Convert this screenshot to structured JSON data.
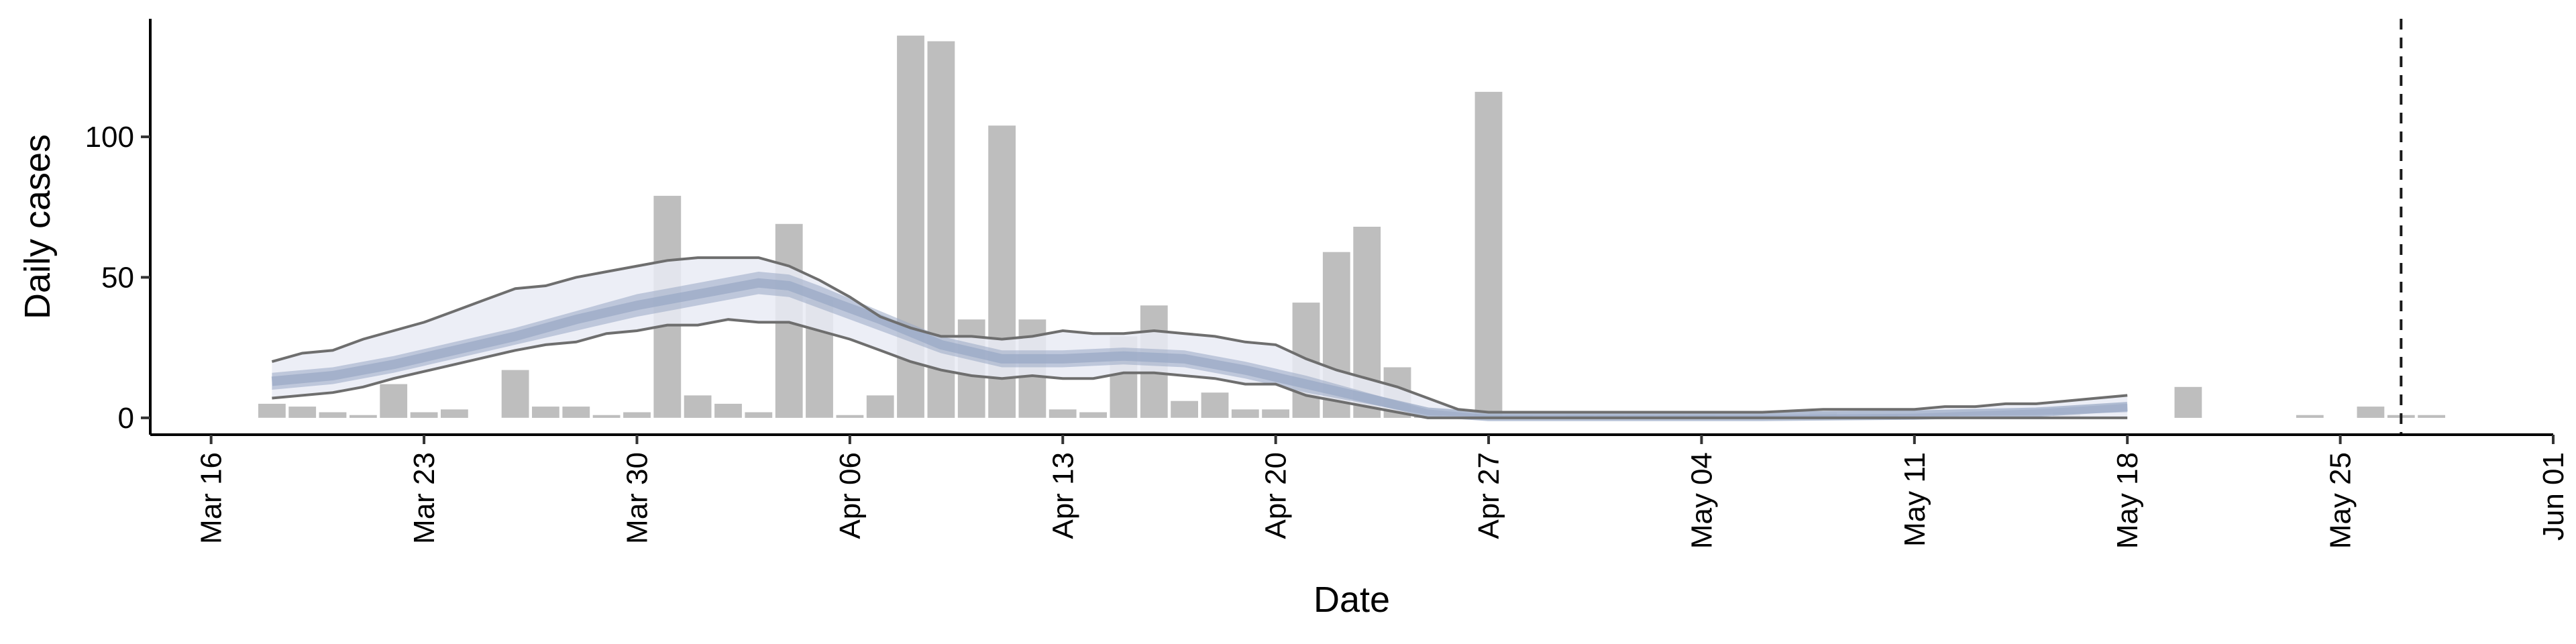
{
  "chart_data": {
    "type": "bar",
    "title": "",
    "xlabel": "Date",
    "ylabel": "Daily cases",
    "x_ticks": [
      "Mar 16",
      "Mar 23",
      "Mar 30",
      "Apr 06",
      "Apr 13",
      "Apr 20",
      "Apr 27",
      "May 04",
      "May 11",
      "May 18",
      "May 25",
      "Jun 01"
    ],
    "y_ticks": [
      0,
      50,
      100
    ],
    "xlim": [
      "2020-03-14",
      "2020-06-01"
    ],
    "ylim": [
      -6,
      142
    ],
    "grid": false,
    "legend": "none",
    "cutoff_date": "2020-05-27",
    "bars": {
      "name": "Daily cases",
      "color": "#bebebe",
      "data": [
        [
          "2020-03-18",
          5
        ],
        [
          "2020-03-19",
          4
        ],
        [
          "2020-03-20",
          2
        ],
        [
          "2020-03-21",
          1
        ],
        [
          "2020-03-22",
          12
        ],
        [
          "2020-03-23",
          2
        ],
        [
          "2020-03-24",
          3
        ],
        [
          "2020-03-26",
          17
        ],
        [
          "2020-03-27",
          4
        ],
        [
          "2020-03-28",
          4
        ],
        [
          "2020-03-29",
          1
        ],
        [
          "2020-03-30",
          2
        ],
        [
          "2020-03-31",
          79
        ],
        [
          "2020-04-01",
          8
        ],
        [
          "2020-04-02",
          5
        ],
        [
          "2020-04-03",
          2
        ],
        [
          "2020-04-04",
          69
        ],
        [
          "2020-04-05",
          42
        ],
        [
          "2020-04-06",
          1
        ],
        [
          "2020-04-07",
          8
        ],
        [
          "2020-04-08",
          136
        ],
        [
          "2020-04-09",
          134
        ],
        [
          "2020-04-10",
          35
        ],
        [
          "2020-04-11",
          104
        ],
        [
          "2020-04-12",
          35
        ],
        [
          "2020-04-13",
          3
        ],
        [
          "2020-04-14",
          2
        ],
        [
          "2020-04-15",
          29
        ],
        [
          "2020-04-16",
          40
        ],
        [
          "2020-04-17",
          6
        ],
        [
          "2020-04-18",
          9
        ],
        [
          "2020-04-19",
          3
        ],
        [
          "2020-04-20",
          3
        ],
        [
          "2020-04-21",
          41
        ],
        [
          "2020-04-22",
          59
        ],
        [
          "2020-04-23",
          68
        ],
        [
          "2020-04-24",
          18
        ],
        [
          "2020-04-25",
          1
        ],
        [
          "2020-04-27",
          116
        ],
        [
          "2020-04-28",
          1
        ],
        [
          "2020-04-30",
          1
        ],
        [
          "2020-05-01",
          1
        ],
        [
          "2020-05-02",
          1
        ],
        [
          "2020-05-03",
          1
        ],
        [
          "2020-05-04",
          1
        ],
        [
          "2020-05-08",
          2
        ],
        [
          "2020-05-10",
          1
        ],
        [
          "2020-05-12",
          1
        ],
        [
          "2020-05-16",
          2
        ],
        [
          "2020-05-20",
          11
        ],
        [
          "2020-05-24",
          1
        ],
        [
          "2020-05-26",
          4
        ],
        [
          "2020-05-27",
          1
        ],
        [
          "2020-05-28",
          1
        ]
      ]
    },
    "median": {
      "color": "#99a8c4",
      "data": [
        [
          "2020-03-18",
          13
        ],
        [
          "2020-03-20",
          15
        ],
        [
          "2020-03-22",
          19
        ],
        [
          "2020-03-24",
          24
        ],
        [
          "2020-03-26",
          29
        ],
        [
          "2020-03-28",
          35
        ],
        [
          "2020-03-30",
          40
        ],
        [
          "2020-04-01",
          44
        ],
        [
          "2020-04-03",
          48
        ],
        [
          "2020-04-04",
          47
        ],
        [
          "2020-04-05",
          43
        ],
        [
          "2020-04-07",
          35
        ],
        [
          "2020-04-09",
          26
        ],
        [
          "2020-04-11",
          21
        ],
        [
          "2020-04-13",
          21
        ],
        [
          "2020-04-15",
          22
        ],
        [
          "2020-04-17",
          21
        ],
        [
          "2020-04-19",
          17
        ],
        [
          "2020-04-21",
          12
        ],
        [
          "2020-04-23",
          7
        ],
        [
          "2020-04-25",
          2
        ],
        [
          "2020-04-27",
          0.5
        ],
        [
          "2020-05-01",
          0.5
        ],
        [
          "2020-05-06",
          0.5
        ],
        [
          "2020-05-11",
          1
        ],
        [
          "2020-05-15",
          2
        ],
        [
          "2020-05-18",
          4
        ]
      ]
    },
    "interval_50": {
      "color": "#99a8c4",
      "lower": [
        [
          "2020-03-18",
          10
        ],
        [
          "2020-03-20",
          12
        ],
        [
          "2020-03-22",
          16
        ],
        [
          "2020-03-24",
          21
        ],
        [
          "2020-03-26",
          26
        ],
        [
          "2020-03-28",
          31
        ],
        [
          "2020-03-30",
          36
        ],
        [
          "2020-04-01",
          40
        ],
        [
          "2020-04-03",
          44
        ],
        [
          "2020-04-04",
          43
        ],
        [
          "2020-04-05",
          39
        ],
        [
          "2020-04-07",
          31
        ],
        [
          "2020-04-09",
          23
        ],
        [
          "2020-04-11",
          18
        ],
        [
          "2020-04-13",
          18
        ],
        [
          "2020-04-15",
          19
        ],
        [
          "2020-04-17",
          18
        ],
        [
          "2020-04-19",
          14
        ],
        [
          "2020-04-21",
          9
        ],
        [
          "2020-04-23",
          5
        ],
        [
          "2020-04-25",
          1
        ],
        [
          "2020-04-27",
          0.2
        ],
        [
          "2020-05-01",
          0.2
        ],
        [
          "2020-05-06",
          0.2
        ],
        [
          "2020-05-11",
          0.5
        ],
        [
          "2020-05-15",
          1
        ],
        [
          "2020-05-18",
          2
        ]
      ],
      "upper": [
        [
          "2020-03-18",
          16
        ],
        [
          "2020-03-20",
          18
        ],
        [
          "2020-03-22",
          22
        ],
        [
          "2020-03-24",
          27
        ],
        [
          "2020-03-26",
          32
        ],
        [
          "2020-03-28",
          38
        ],
        [
          "2020-03-30",
          44
        ],
        [
          "2020-04-01",
          48
        ],
        [
          "2020-04-03",
          52
        ],
        [
          "2020-04-04",
          51
        ],
        [
          "2020-04-05",
          47
        ],
        [
          "2020-04-07",
          38
        ],
        [
          "2020-04-09",
          29
        ],
        [
          "2020-04-11",
          24
        ],
        [
          "2020-04-13",
          24
        ],
        [
          "2020-04-15",
          25
        ],
        [
          "2020-04-17",
          24
        ],
        [
          "2020-04-19",
          20
        ],
        [
          "2020-04-21",
          15
        ],
        [
          "2020-04-23",
          9
        ],
        [
          "2020-04-25",
          3
        ],
        [
          "2020-04-27",
          1
        ],
        [
          "2020-05-01",
          1
        ],
        [
          "2020-05-06",
          1
        ],
        [
          "2020-05-11",
          1.5
        ],
        [
          "2020-05-15",
          3
        ],
        [
          "2020-05-18",
          5
        ]
      ]
    },
    "interval_90": {
      "fill": "#e9ebf4",
      "line": "#6e6e6e",
      "lower": [
        [
          "2020-03-18",
          7
        ],
        [
          "2020-03-20",
          9
        ],
        [
          "2020-03-21",
          11
        ],
        [
          "2020-03-22",
          14
        ],
        [
          "2020-03-24",
          19
        ],
        [
          "2020-03-26",
          24
        ],
        [
          "2020-03-27",
          26
        ],
        [
          "2020-03-28",
          27
        ],
        [
          "2020-03-29",
          30
        ],
        [
          "2020-03-30",
          31
        ],
        [
          "2020-03-31",
          33
        ],
        [
          "2020-04-01",
          33
        ],
        [
          "2020-04-02",
          35
        ],
        [
          "2020-04-03",
          34
        ],
        [
          "2020-04-04",
          34
        ],
        [
          "2020-04-05",
          31
        ],
        [
          "2020-04-06",
          28
        ],
        [
          "2020-04-07",
          24
        ],
        [
          "2020-04-08",
          20
        ],
        [
          "2020-04-09",
          17
        ],
        [
          "2020-04-10",
          15
        ],
        [
          "2020-04-11",
          14
        ],
        [
          "2020-04-12",
          15
        ],
        [
          "2020-04-13",
          14
        ],
        [
          "2020-04-14",
          14
        ],
        [
          "2020-04-15",
          16
        ],
        [
          "2020-04-16",
          16
        ],
        [
          "2020-04-17",
          15
        ],
        [
          "2020-04-18",
          14
        ],
        [
          "2020-04-19",
          12
        ],
        [
          "2020-04-20",
          12
        ],
        [
          "2020-04-21",
          8
        ],
        [
          "2020-04-22",
          6
        ],
        [
          "2020-04-23",
          4
        ],
        [
          "2020-04-24",
          2
        ],
        [
          "2020-04-25",
          0
        ],
        [
          "2020-05-18",
          0
        ]
      ],
      "upper": [
        [
          "2020-03-18",
          20
        ],
        [
          "2020-03-19",
          23
        ],
        [
          "2020-03-20",
          24
        ],
        [
          "2020-03-21",
          28
        ],
        [
          "2020-03-22",
          31
        ],
        [
          "2020-03-23",
          34
        ],
        [
          "2020-03-24",
          38
        ],
        [
          "2020-03-25",
          42
        ],
        [
          "2020-03-26",
          46
        ],
        [
          "2020-03-27",
          47
        ],
        [
          "2020-03-28",
          50
        ],
        [
          "2020-03-29",
          52
        ],
        [
          "2020-03-30",
          54
        ],
        [
          "2020-03-31",
          56
        ],
        [
          "2020-04-01",
          57
        ],
        [
          "2020-04-02",
          57
        ],
        [
          "2020-04-03",
          57
        ],
        [
          "2020-04-04",
          54
        ],
        [
          "2020-04-05",
          49
        ],
        [
          "2020-04-06",
          43
        ],
        [
          "2020-04-07",
          36
        ],
        [
          "2020-04-08",
          32
        ],
        [
          "2020-04-09",
          29
        ],
        [
          "2020-04-10",
          29
        ],
        [
          "2020-04-11",
          28
        ],
        [
          "2020-04-12",
          29
        ],
        [
          "2020-04-13",
          31
        ],
        [
          "2020-04-14",
          30
        ],
        [
          "2020-04-15",
          30
        ],
        [
          "2020-04-16",
          31
        ],
        [
          "2020-04-17",
          30
        ],
        [
          "2020-04-18",
          29
        ],
        [
          "2020-04-19",
          27
        ],
        [
          "2020-04-20",
          26
        ],
        [
          "2020-04-21",
          21
        ],
        [
          "2020-04-22",
          17
        ],
        [
          "2020-04-23",
          14
        ],
        [
          "2020-04-24",
          11
        ],
        [
          "2020-04-25",
          7
        ],
        [
          "2020-04-26",
          3
        ],
        [
          "2020-04-27",
          2
        ],
        [
          "2020-05-02",
          2
        ],
        [
          "2020-05-06",
          2
        ],
        [
          "2020-05-08",
          3
        ],
        [
          "2020-05-11",
          3
        ],
        [
          "2020-05-12",
          4
        ],
        [
          "2020-05-13",
          4
        ],
        [
          "2020-05-14",
          5
        ],
        [
          "2020-05-15",
          5
        ],
        [
          "2020-05-16",
          6
        ],
        [
          "2020-05-17",
          7
        ],
        [
          "2020-05-18",
          8
        ]
      ]
    }
  }
}
